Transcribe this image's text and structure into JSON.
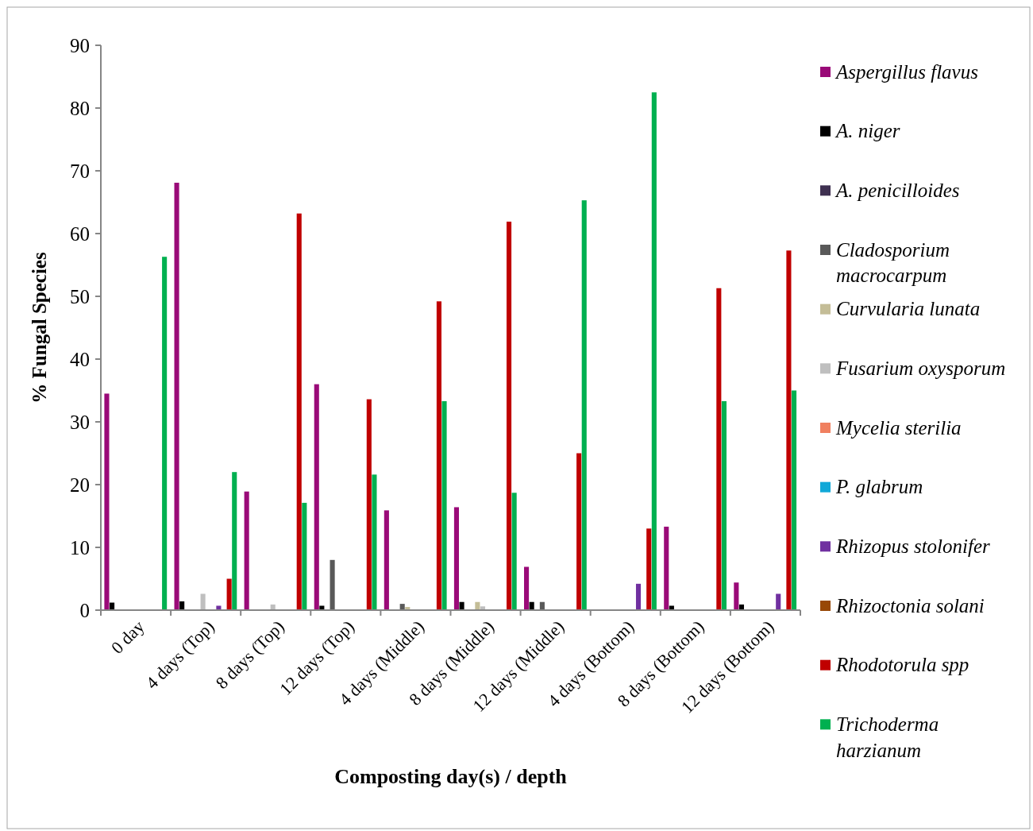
{
  "chart_data": {
    "type": "bar",
    "xlabel": "Composting day(s) / depth",
    "ylabel": "% Fungal Species",
    "categories": [
      "0 day",
      "4 days (Top)",
      "8 days (Top)",
      "12 days (Top)",
      "4 days (Middle)",
      "8 days (Middle)",
      "12 days (Middle)",
      "4 days (Bottom)",
      "8 days (Bottom)",
      "12 days (Bottom)"
    ],
    "ylim": [
      0,
      90
    ],
    "yticks": [
      0,
      10,
      20,
      30,
      40,
      50,
      60,
      70,
      80,
      90
    ],
    "grid": false,
    "legend": "right",
    "series": [
      {
        "name": "Aspergillus flavus",
        "color": "#9a0a78",
        "values": [
          34.5,
          68.1,
          18.9,
          36.0,
          15.9,
          16.4,
          6.9,
          0,
          13.3,
          4.4
        ]
      },
      {
        "name": "A. niger",
        "color": "#000000",
        "values": [
          1.2,
          1.4,
          0,
          0.7,
          0,
          1.3,
          1.3,
          0,
          0.7,
          0.9
        ]
      },
      {
        "name": "A. penicilloides",
        "color": "#3f3151",
        "values": [
          0,
          0,
          0,
          0,
          0,
          0,
          0,
          0,
          0,
          0
        ]
      },
      {
        "name": "Cladosporium macrocarpum",
        "color": "#595959",
        "values": [
          0,
          0,
          0,
          8.0,
          1.0,
          0,
          1.3,
          0,
          0,
          0
        ]
      },
      {
        "name": "Curvularia lunata",
        "color": "#c4bd97",
        "values": [
          0,
          0,
          0,
          0,
          0.5,
          1.3,
          0,
          0,
          0,
          0
        ]
      },
      {
        "name": "Fusarium oxysporum",
        "color": "#bfbfbf",
        "values": [
          0,
          2.6,
          0.9,
          0,
          0,
          0.6,
          0,
          0,
          0,
          0
        ]
      },
      {
        "name": "Mycelia sterilia",
        "color": "#f08060",
        "values": [
          0,
          0,
          0,
          0,
          0,
          0,
          0,
          0,
          0,
          0
        ]
      },
      {
        "name": "P. glabrum",
        "color": "#10a8d8",
        "values": [
          0,
          0,
          0,
          0,
          0,
          0,
          0,
          0,
          0,
          0
        ]
      },
      {
        "name": "Rhizopus stolonifer",
        "color": "#7030a0",
        "values": [
          0,
          0.7,
          0,
          0,
          0,
          0,
          0,
          4.2,
          0,
          2.6
        ]
      },
      {
        "name": "Rhizoctonia solani",
        "color": "#984806",
        "values": [
          0,
          0,
          0,
          0,
          0,
          0,
          0,
          0,
          0,
          0
        ]
      },
      {
        "name": "Rhodotorula spp",
        "color": "#c00000",
        "values": [
          0,
          5.0,
          63.2,
          33.6,
          49.2,
          61.9,
          25.0,
          13.0,
          51.3,
          57.3
        ]
      },
      {
        "name": "Trichoderma harzianum",
        "color": "#00b050",
        "values": [
          56.3,
          22.0,
          17.1,
          21.6,
          33.3,
          18.7,
          65.3,
          82.5,
          33.3,
          35.0
        ]
      }
    ]
  }
}
